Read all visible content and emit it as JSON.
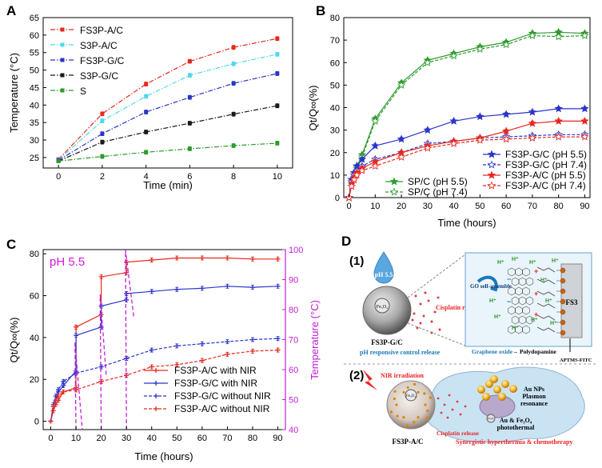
{
  "panels": {
    "a": "A",
    "b": "B",
    "c": "C",
    "d": "D"
  },
  "chart_data": [
    {
      "id": "A",
      "type": "line",
      "xlabel": "Time (min)",
      "ylabel": "Temperature (°C)",
      "xlim": [
        -0.7,
        10.7
      ],
      "ylim": [
        22,
        65
      ],
      "xticks": [
        0,
        2,
        4,
        6,
        8,
        10
      ],
      "yticks": [
        25,
        30,
        35,
        40,
        45,
        50,
        55,
        60,
        65
      ],
      "x": [
        0,
        2,
        4,
        6,
        8,
        10
      ],
      "legend_position": "top-left",
      "series": [
        {
          "name": "FS3P-A/C",
          "color": "#e8281e",
          "dash": "6,2,1.5,2",
          "marker": "square",
          "values": [
            24.5,
            37.5,
            46.0,
            52.5,
            56.5,
            59.0
          ]
        },
        {
          "name": "S3P-A/C",
          "color": "#4fd8f0",
          "dash": "6,2,1.5,2",
          "marker": "square",
          "values": [
            24.3,
            35.5,
            42.5,
            48.5,
            51.8,
            54.5
          ]
        },
        {
          "name": "FS3P-G/C",
          "color": "#2a35c8",
          "dash": "6,2,1.5,2",
          "marker": "square",
          "values": [
            24.2,
            31.8,
            38.0,
            42.2,
            46.2,
            49.0
          ]
        },
        {
          "name": "S3P-G/C",
          "color": "#1a1a1a",
          "dash": "6,2,1.5,2",
          "marker": "square",
          "values": [
            24.0,
            29.4,
            32.3,
            34.8,
            37.4,
            39.8
          ]
        },
        {
          "name": "S",
          "color": "#2e9a2e",
          "dash": "6,2,1.5,2",
          "marker": "square",
          "values": [
            24.0,
            25.3,
            26.5,
            27.5,
            28.4,
            29.1
          ]
        }
      ]
    },
    {
      "id": "B",
      "type": "line",
      "xlabel": "Time (hours)",
      "ylabel": "Qt/Q∞(%)",
      "xlim": [
        -2,
        92
      ],
      "ylim": [
        0,
        80
      ],
      "xticks": [
        0,
        10,
        20,
        30,
        40,
        50,
        60,
        70,
        80,
        90
      ],
      "yticks": [
        0,
        10,
        20,
        30,
        40,
        50,
        60,
        70,
        80
      ],
      "x": [
        0,
        1,
        2,
        3,
        5,
        10,
        20,
        30,
        40,
        50,
        60,
        70,
        80,
        90
      ],
      "legend_position": "bottom-right",
      "series": [
        {
          "name": "SP/C (pH 5.5)",
          "color": "#2e9a2e",
          "dash": "",
          "marker": "star",
          "values": [
            0,
            8,
            11,
            14,
            19,
            35,
            51,
            61,
            64,
            67,
            69,
            73,
            73.5,
            73
          ]
        },
        {
          "name": "SP/C (pH 7.4)",
          "color": "#2e9a2e",
          "dash": "4,2",
          "marker": "star-open",
          "values": [
            0,
            7,
            10,
            13,
            18,
            34,
            50,
            60,
            63,
            66,
            68,
            72,
            71.5,
            72
          ]
        },
        {
          "name": "FS3P-G/C (pH 5.5)",
          "color": "#2a35c8",
          "dash": "",
          "marker": "star",
          "values": [
            0,
            8,
            11,
            14,
            17,
            23,
            26,
            30,
            34,
            36,
            37,
            38,
            39.5,
            39.5
          ]
        },
        {
          "name": "FS3P-G/C (pH 7.4)",
          "color": "#2a35c8",
          "dash": "4,2",
          "marker": "star-open",
          "values": [
            0,
            7,
            10,
            12,
            14,
            17,
            20,
            24,
            25,
            26.5,
            27,
            27.5,
            28,
            28
          ]
        },
        {
          "name": "FS3P-A/C (pH 5.5)",
          "color": "#e8281e",
          "dash": "",
          "marker": "star",
          "values": [
            0,
            6,
            9,
            11,
            13,
            16,
            20,
            23,
            25,
            26.5,
            29.5,
            33,
            34,
            34
          ]
        },
        {
          "name": "FS3P-A/C (pH 7.4)",
          "color": "#e8281e",
          "dash": "4,2",
          "marker": "star-open",
          "values": [
            0,
            5,
            8,
            10,
            12,
            14,
            18,
            22,
            24,
            25.5,
            26,
            26.5,
            27,
            27
          ]
        }
      ]
    },
    {
      "id": "C",
      "type": "line",
      "annotation": "pH 5.5",
      "xlabel": "Time (hours)",
      "ylabel": "Qt/Q∞(%)",
      "ylabel_right": "Temperature (°C)",
      "xlim": [
        -3,
        93
      ],
      "ylim": [
        -4,
        82
      ],
      "ylim_right": [
        40,
        100
      ],
      "xticks": [
        0,
        10,
        20,
        30,
        40,
        50,
        60,
        70,
        80,
        90
      ],
      "yticks": [
        0,
        20,
        40,
        60,
        80
      ],
      "yticks_right": [
        40,
        50,
        60,
        70,
        80,
        90,
        100
      ],
      "x": [
        0,
        1,
        2,
        3,
        5,
        10,
        10.01,
        20,
        20.01,
        30,
        30.01,
        40,
        50,
        60,
        70,
        80,
        90
      ],
      "legend_position": "bottom-right",
      "series": [
        {
          "name": "FS3P-A/C with NIR",
          "color": "#e8281e",
          "dash": "",
          "marker": "plus",
          "values": [
            0,
            5,
            8,
            10,
            14,
            16,
            45,
            51,
            69,
            71,
            76,
            77,
            78,
            78,
            78,
            77.5,
            77.5
          ]
        },
        {
          "name": "FS3P-G/C with NIR",
          "color": "#2a35c8",
          "dash": "",
          "marker": "plus",
          "values": [
            0,
            7,
            10,
            14,
            17,
            24,
            41,
            45,
            55,
            58,
            61,
            62,
            63,
            63.5,
            64.5,
            64,
            64.5
          ]
        },
        {
          "name": "FS3P-G/C without NIR",
          "color": "#2a35c8",
          "dash": "4,2",
          "marker": "plus",
          "values": [
            0,
            8,
            12,
            15,
            19,
            23,
            23,
            26,
            26,
            30,
            30,
            34,
            36,
            37,
            38,
            39,
            39.5
          ]
        },
        {
          "name": "FS3P-A/C without NIR",
          "color": "#e8281e",
          "dash": "4,2",
          "marker": "plus",
          "values": [
            0,
            7,
            10,
            12,
            14,
            15,
            15,
            19,
            19,
            22,
            22,
            26,
            27,
            29,
            32,
            33.5,
            34
          ]
        }
      ],
      "temperature_series": {
        "color": "#c020d8",
        "axis": "right",
        "points": [
          [
            10,
            40
          ],
          [
            9.6,
            69
          ],
          [
            12.5,
            40
          ],
          [
            20,
            40
          ],
          [
            19.6,
            85
          ],
          [
            22,
            58
          ],
          [
            30,
            40
          ],
          [
            29.6,
            100
          ],
          [
            33,
            77
          ]
        ]
      }
    }
  ],
  "panel_d": {
    "step1": "(1)",
    "step2": "(2)",
    "ph_drop": "pH 5.5",
    "fe3o4_label_1": "Fe₃O₄",
    "fe3o4_label_2": "Fe₃O₄",
    "fe3o4_label_3": "Fe₃O₄",
    "sphere1_name": "FS3P-G/C",
    "cisplatin_release_1": "Cisplatin release",
    "ph_control": "pH responsive control release",
    "go_self_assemble": "GO self-assemble",
    "graphene_oxide": "Graphene oxide",
    "dash": "–",
    "polydopamine": "Polydopamine",
    "fs3": "FS3",
    "aptms": "APTMS-FITC",
    "nir": "NIR irradiation",
    "au_nps": "Au NPs",
    "plasmon": "Plasmon",
    "resonance": "resonance",
    "au_fe": "Au & Fe₃O₄",
    "photothermal": "photothermal",
    "cisplatin_release_2": "Cisplatin release",
    "sphere2_name": "FS3P-A/C",
    "synergy": "Synergistic hyperthermia & chemotherapy",
    "h_plus": "H⁺",
    "plus": "+",
    "minus": "−",
    "cooh": "COOH",
    "nh2": "NH₂"
  }
}
